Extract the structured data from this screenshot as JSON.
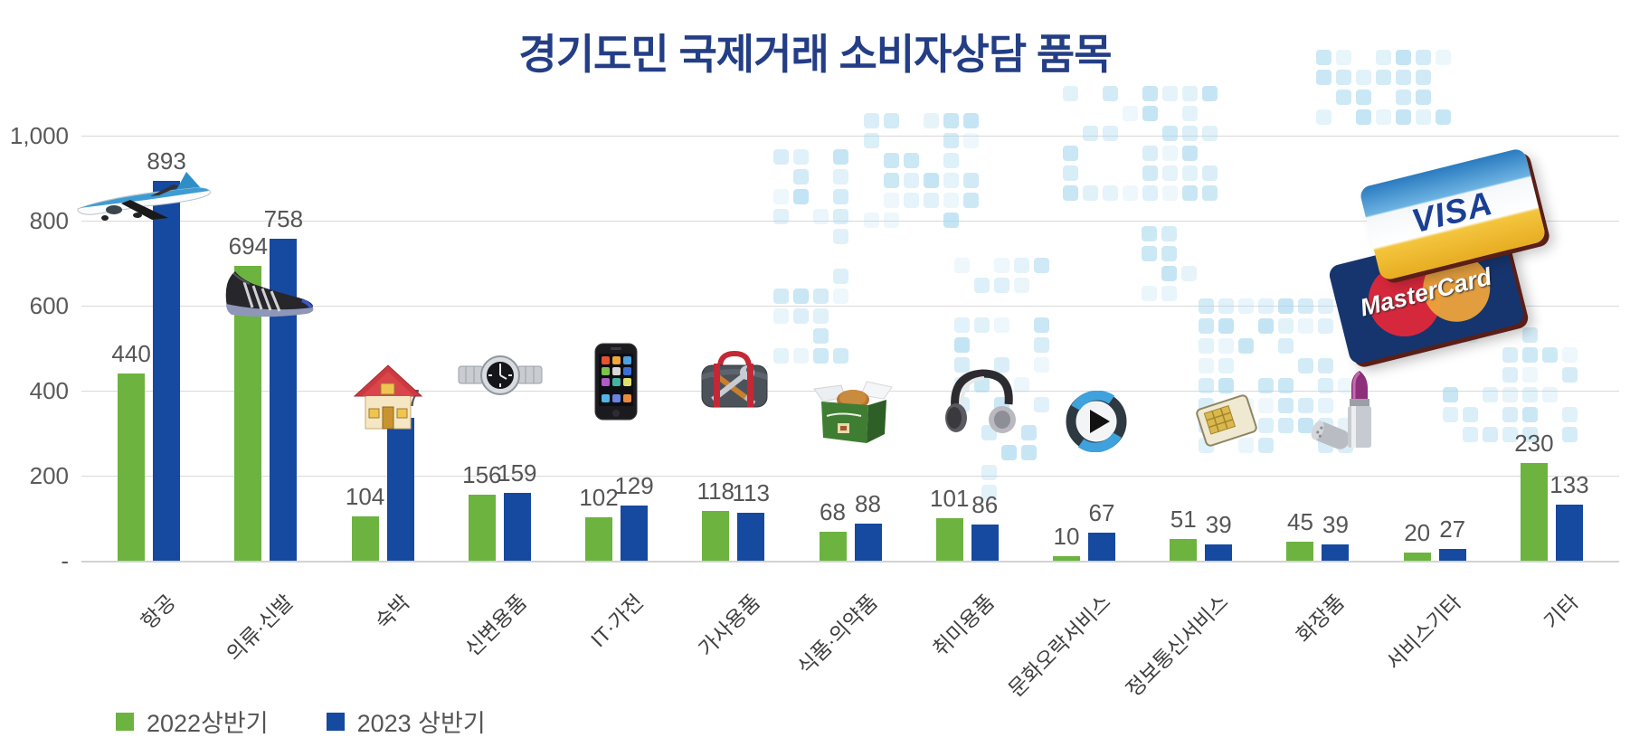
{
  "title": "경기도민 국제거래 소비자상담 품목",
  "legend": [
    {
      "label": "2022상반기",
      "color": "#6cb33f"
    },
    {
      "label": "2023 상반기",
      "color": "#1649a0"
    }
  ],
  "decorations": {
    "visa_label": "VISA",
    "mastercard_label": "MasterCard",
    "icons": [
      "airplane-icon",
      "sneaker-icon",
      "house-icon",
      "wristwatch-icon",
      "smartphone-icon",
      "toolbag-icon",
      "food-box-icon",
      "headphones-icon",
      "media-player-icon",
      "sim-card-icon",
      "lipstick-icon",
      "visa-card",
      "mastercard-card",
      "world-map-mosaic"
    ]
  },
  "colors": {
    "title": "#243e86",
    "series_2022": "#6cb33f",
    "series_2023": "#1649a0",
    "gridline": "#d9d9d9",
    "map_square": "#a6d7ee"
  },
  "chart_data": {
    "type": "bar",
    "title": "경기도민 국제거래 소비자상담 품목",
    "categories": [
      "항공",
      "의류·신발",
      "숙박",
      "신변용품",
      "IT·가전",
      "가사용품",
      "식품·의약품",
      "취미용품",
      "문화오락서비스",
      "정보통신서비스",
      "화장품",
      "서비스기타",
      "기타"
    ],
    "series": [
      {
        "name": "2022상반기",
        "color": "#6cb33f",
        "values": [
          440,
          694,
          104,
          156,
          102,
          118,
          68,
          101,
          10,
          51,
          45,
          20,
          230
        ]
      },
      {
        "name": "2023 상반기",
        "color": "#1649a0",
        "values": [
          893,
          758,
          337,
          159,
          129,
          113,
          88,
          86,
          67,
          39,
          39,
          27,
          133
        ]
      }
    ],
    "xlabel": "",
    "ylabel": "",
    "ylim": [
      0,
      1000
    ],
    "y_tick_values": [
      1000,
      800,
      600,
      400,
      200,
      0
    ],
    "y_tick_labels": [
      "1,000",
      "800",
      "600",
      "400",
      "200",
      "-"
    ],
    "grid": true,
    "data_labels": true,
    "legend_position": "bottom-left"
  }
}
